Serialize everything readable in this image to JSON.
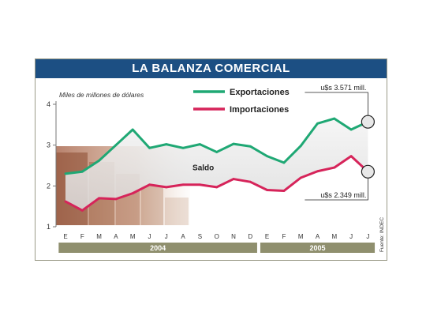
{
  "chart_data": {
    "type": "line",
    "title": "LA BALANZA COMERCIAL",
    "ylabel": "Miles de millones de dólares",
    "ylim": [
      1,
      4
    ],
    "yticks": [
      "4",
      "3",
      "2",
      "1"
    ],
    "categories": [
      "E",
      "F",
      "M",
      "A",
      "M",
      "J",
      "J",
      "A",
      "S",
      "O",
      "N",
      "D",
      "E",
      "F",
      "M",
      "A",
      "M",
      "J",
      "J"
    ],
    "years": [
      {
        "label": "2004",
        "from": 0,
        "to": 11
      },
      {
        "label": "2005",
        "from": 12,
        "to": 18
      }
    ],
    "series": [
      {
        "name": "Exportaciones",
        "color": "#1fa874",
        "values": [
          2.3,
          2.35,
          2.62,
          3.0,
          3.38,
          2.93,
          3.02,
          2.93,
          3.02,
          2.83,
          3.03,
          2.97,
          2.73,
          2.57,
          2.98,
          3.53,
          3.65,
          3.38,
          3.571
        ]
      },
      {
        "name": "Importaciones",
        "color": "#d6245a",
        "values": [
          1.62,
          1.4,
          1.7,
          1.68,
          1.82,
          2.03,
          1.97,
          2.03,
          2.03,
          1.97,
          2.17,
          2.1,
          1.9,
          1.88,
          2.2,
          2.36,
          2.45,
          2.73,
          2.349
        ]
      }
    ],
    "area_label": "Saldo",
    "annotations": [
      {
        "text": "u$s 3.571 mill.",
        "series": 0,
        "index": 18
      },
      {
        "text": "u$s 2.349 mill.",
        "series": 1,
        "index": 18
      }
    ],
    "source": "Fuente: INDEC",
    "grid": false,
    "legend": "top-center"
  }
}
